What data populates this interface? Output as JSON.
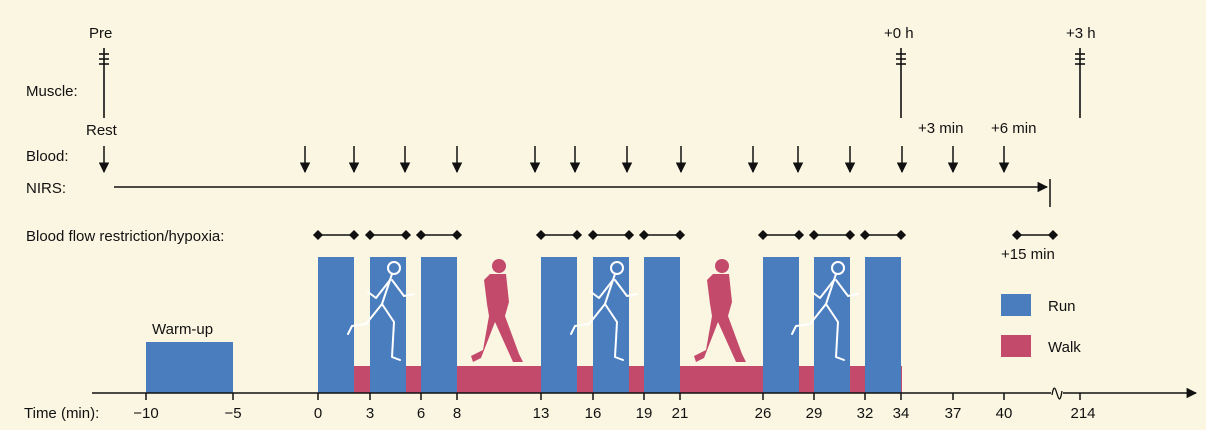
{
  "labels": {
    "muscle": "Muscle:",
    "blood": "Blood:",
    "nirs": "NIRS:",
    "bfr": "Blood flow restriction/hypoxia:",
    "time": "Time (min):",
    "warmup": "Warm-up",
    "pre": "Pre",
    "rest": "Rest",
    "plus0h": "+0 h",
    "plus3h": "+3 h",
    "plus3min": "+3 min",
    "plus6min": "+6 min",
    "plus15min": "+15 min"
  },
  "legend": {
    "run": "Run",
    "walk": "Walk"
  },
  "colors": {
    "run": "#4a7dbe",
    "walk": "#c44a6c",
    "background": "#fbf6e2"
  },
  "timeline": {
    "ticks": [
      "−10",
      "−5",
      "0",
      "3",
      "6",
      "8",
      "13",
      "16",
      "19",
      "21",
      "26",
      "29",
      "32",
      "34",
      "37",
      "40",
      "214"
    ]
  },
  "icons": {
    "runner": "runner-icon",
    "walker": "walker-icon"
  }
}
